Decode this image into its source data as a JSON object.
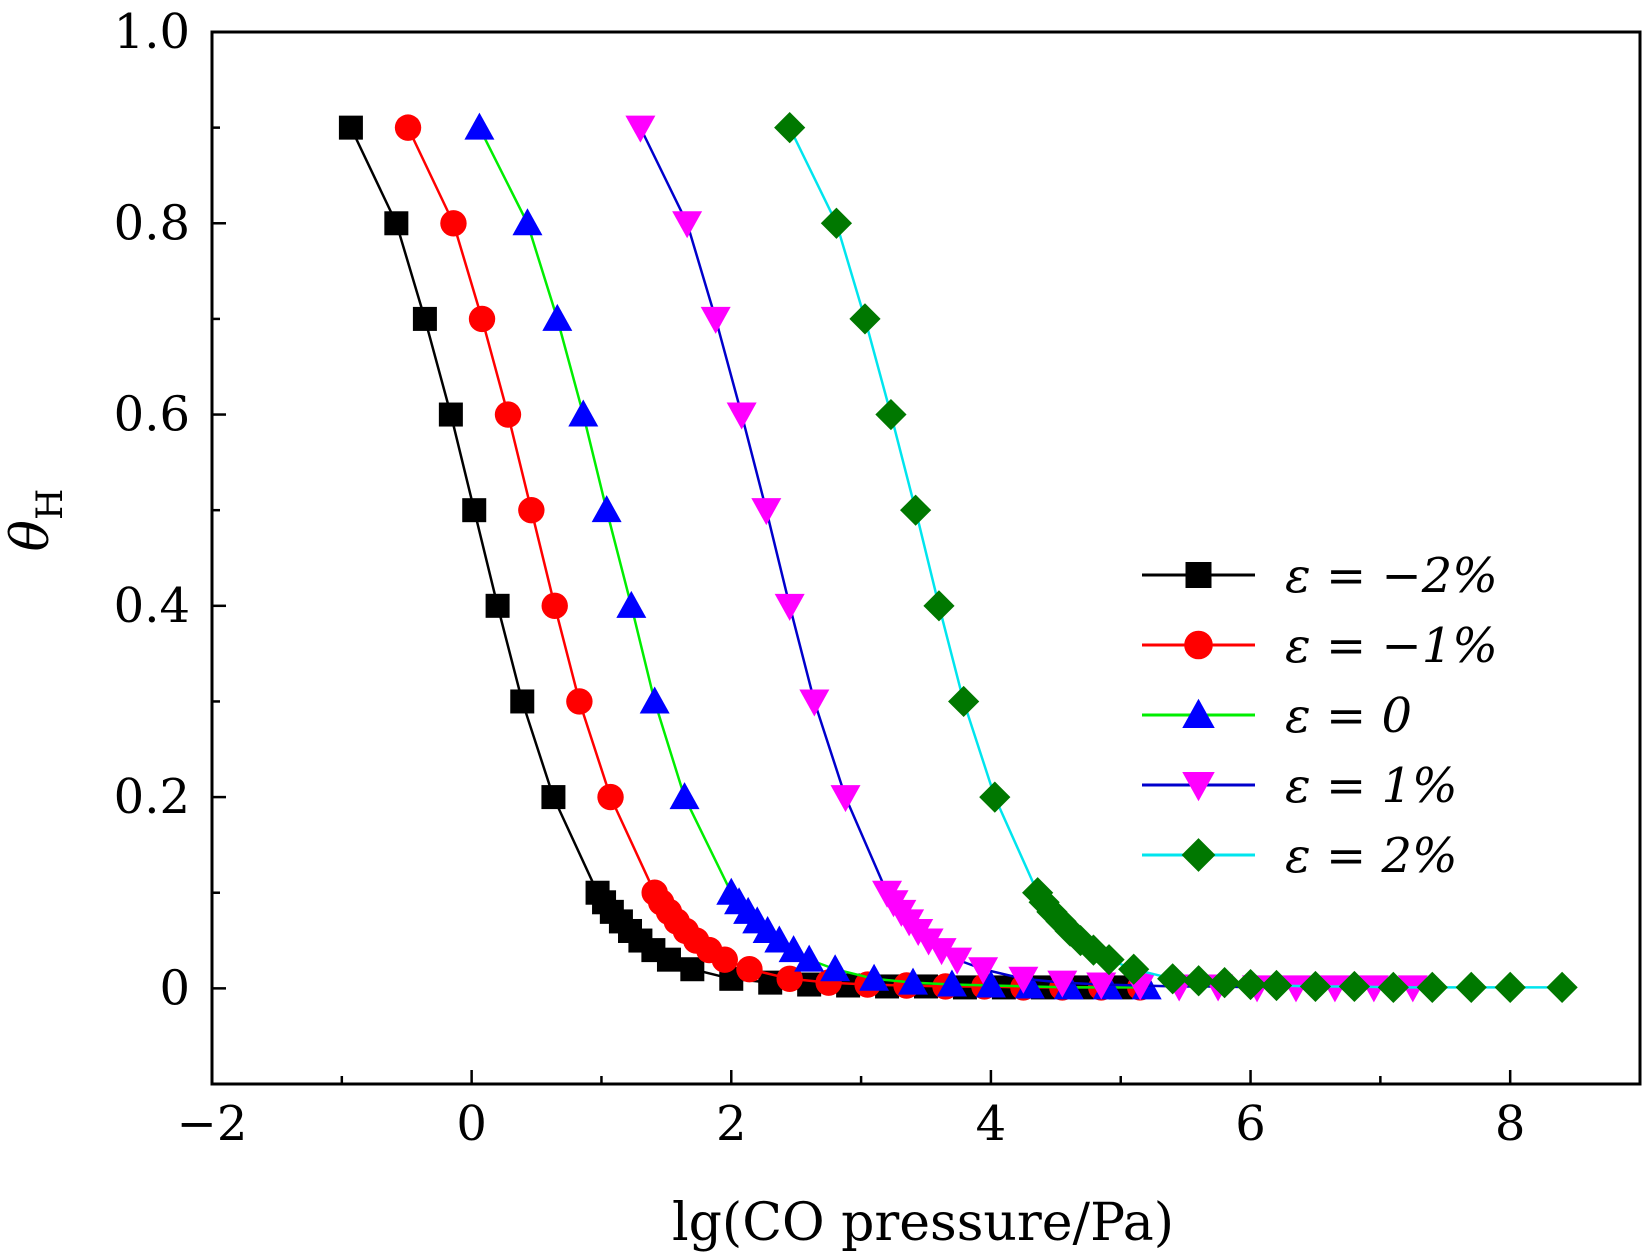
{
  "chart_data": {
    "type": "scatter",
    "title": "",
    "xlabel": "lg(CO pressure/Pa)",
    "ylabel": "θ",
    "ylabel_subscript": "H",
    "xlim": [
      -2,
      9
    ],
    "ylim": [
      -0.1,
      1.0
    ],
    "x_ticks": [
      -2,
      0,
      2,
      4,
      6,
      8
    ],
    "x_tick_labels": [
      "−2",
      "0",
      "2",
      "4",
      "6",
      "8"
    ],
    "y_ticks": [
      0,
      0.2,
      0.4,
      0.6,
      0.8,
      1.0
    ],
    "y_tick_labels": [
      "0",
      "0.2",
      "0.4",
      "0.6",
      "0.8",
      "1.0"
    ],
    "grid": false,
    "legend_position": "center-right",
    "series": [
      {
        "name": "ε = −2%",
        "line_color": "#000000",
        "marker_color": "#000000",
        "marker": "square",
        "x": [
          -0.93,
          -0.58,
          -0.36,
          -0.16,
          0.02,
          0.2,
          0.39,
          0.63,
          0.97,
          1.02,
          1.08,
          1.15,
          1.22,
          1.3,
          1.4,
          1.52,
          1.7,
          2.0,
          2.3,
          2.6,
          2.9,
          3.2,
          3.5,
          3.8,
          4.1,
          4.4,
          4.7,
          5.0
        ],
        "y": [
          0.9,
          0.8,
          0.7,
          0.6,
          0.5,
          0.4,
          0.3,
          0.2,
          0.1,
          0.09,
          0.08,
          0.07,
          0.06,
          0.05,
          0.04,
          0.03,
          0.02,
          0.01,
          0.006,
          0.004,
          0.003,
          0.002,
          0.002,
          0.001,
          0.001,
          0.001,
          0.001,
          0.001
        ]
      },
      {
        "name": "ε = −1%",
        "line_color": "#ff0000",
        "marker_color": "#ff0000",
        "marker": "circle",
        "x": [
          -0.49,
          -0.14,
          0.08,
          0.28,
          0.46,
          0.64,
          0.83,
          1.07,
          1.41,
          1.46,
          1.52,
          1.58,
          1.65,
          1.73,
          1.83,
          1.95,
          2.14,
          2.45,
          2.75,
          3.05,
          3.35,
          3.65,
          3.95,
          4.25,
          4.55,
          4.85,
          5.15
        ],
        "y": [
          0.9,
          0.8,
          0.7,
          0.6,
          0.5,
          0.4,
          0.3,
          0.2,
          0.1,
          0.09,
          0.08,
          0.07,
          0.06,
          0.05,
          0.04,
          0.03,
          0.02,
          0.01,
          0.006,
          0.004,
          0.003,
          0.002,
          0.002,
          0.001,
          0.001,
          0.001,
          0.001
        ]
      },
      {
        "name": "ε = 0",
        "line_color": "#00ee00",
        "marker_color": "#0000ff",
        "marker": "triangle-up",
        "x": [
          0.06,
          0.43,
          0.66,
          0.86,
          1.04,
          1.23,
          1.41,
          1.64,
          2.0,
          2.06,
          2.13,
          2.2,
          2.28,
          2.37,
          2.48,
          2.6,
          2.8,
          3.1,
          3.4,
          3.7,
          4.0,
          4.3,
          4.6,
          4.9,
          5.2
        ],
        "y": [
          0.9,
          0.8,
          0.7,
          0.6,
          0.5,
          0.4,
          0.3,
          0.2,
          0.1,
          0.09,
          0.08,
          0.07,
          0.06,
          0.05,
          0.04,
          0.03,
          0.02,
          0.01,
          0.006,
          0.004,
          0.003,
          0.002,
          0.001,
          0.001,
          0.001
        ]
      },
      {
        "name": "ε = 1%",
        "line_color": "#0000cc",
        "marker_color": "#ff00ff",
        "marker": "triangle-down",
        "x": [
          1.3,
          1.66,
          1.88,
          2.08,
          2.27,
          2.45,
          2.64,
          2.88,
          3.2,
          3.25,
          3.31,
          3.37,
          3.44,
          3.52,
          3.62,
          3.74,
          3.94,
          4.25,
          4.55,
          4.85,
          5.15,
          5.45,
          5.75,
          6.05,
          6.35,
          6.65,
          6.95,
          7.25
        ],
        "y": [
          0.9,
          0.8,
          0.7,
          0.6,
          0.5,
          0.4,
          0.3,
          0.2,
          0.1,
          0.09,
          0.08,
          0.07,
          0.06,
          0.05,
          0.04,
          0.03,
          0.02,
          0.01,
          0.006,
          0.004,
          0.003,
          0.002,
          0.002,
          0.001,
          0.001,
          0.001,
          0.001,
          0.001
        ]
      },
      {
        "name": "ε = 2%",
        "line_color": "#00e5ee",
        "marker_color": "#007800",
        "marker": "diamond",
        "x": [
          2.45,
          2.81,
          3.03,
          3.23,
          3.42,
          3.6,
          3.79,
          4.03,
          4.36,
          4.41,
          4.47,
          4.54,
          4.61,
          4.69,
          4.79,
          4.91,
          5.1,
          5.4,
          5.6,
          5.8,
          6.0,
          6.2,
          6.5,
          6.8,
          7.1,
          7.4,
          7.7,
          8.0,
          8.4
        ],
        "y": [
          0.9,
          0.8,
          0.7,
          0.6,
          0.5,
          0.4,
          0.3,
          0.2,
          0.1,
          0.09,
          0.08,
          0.07,
          0.06,
          0.05,
          0.04,
          0.03,
          0.02,
          0.01,
          0.008,
          0.006,
          0.004,
          0.003,
          0.002,
          0.002,
          0.001,
          0.001,
          0.001,
          0.001,
          0.001
        ]
      }
    ]
  }
}
